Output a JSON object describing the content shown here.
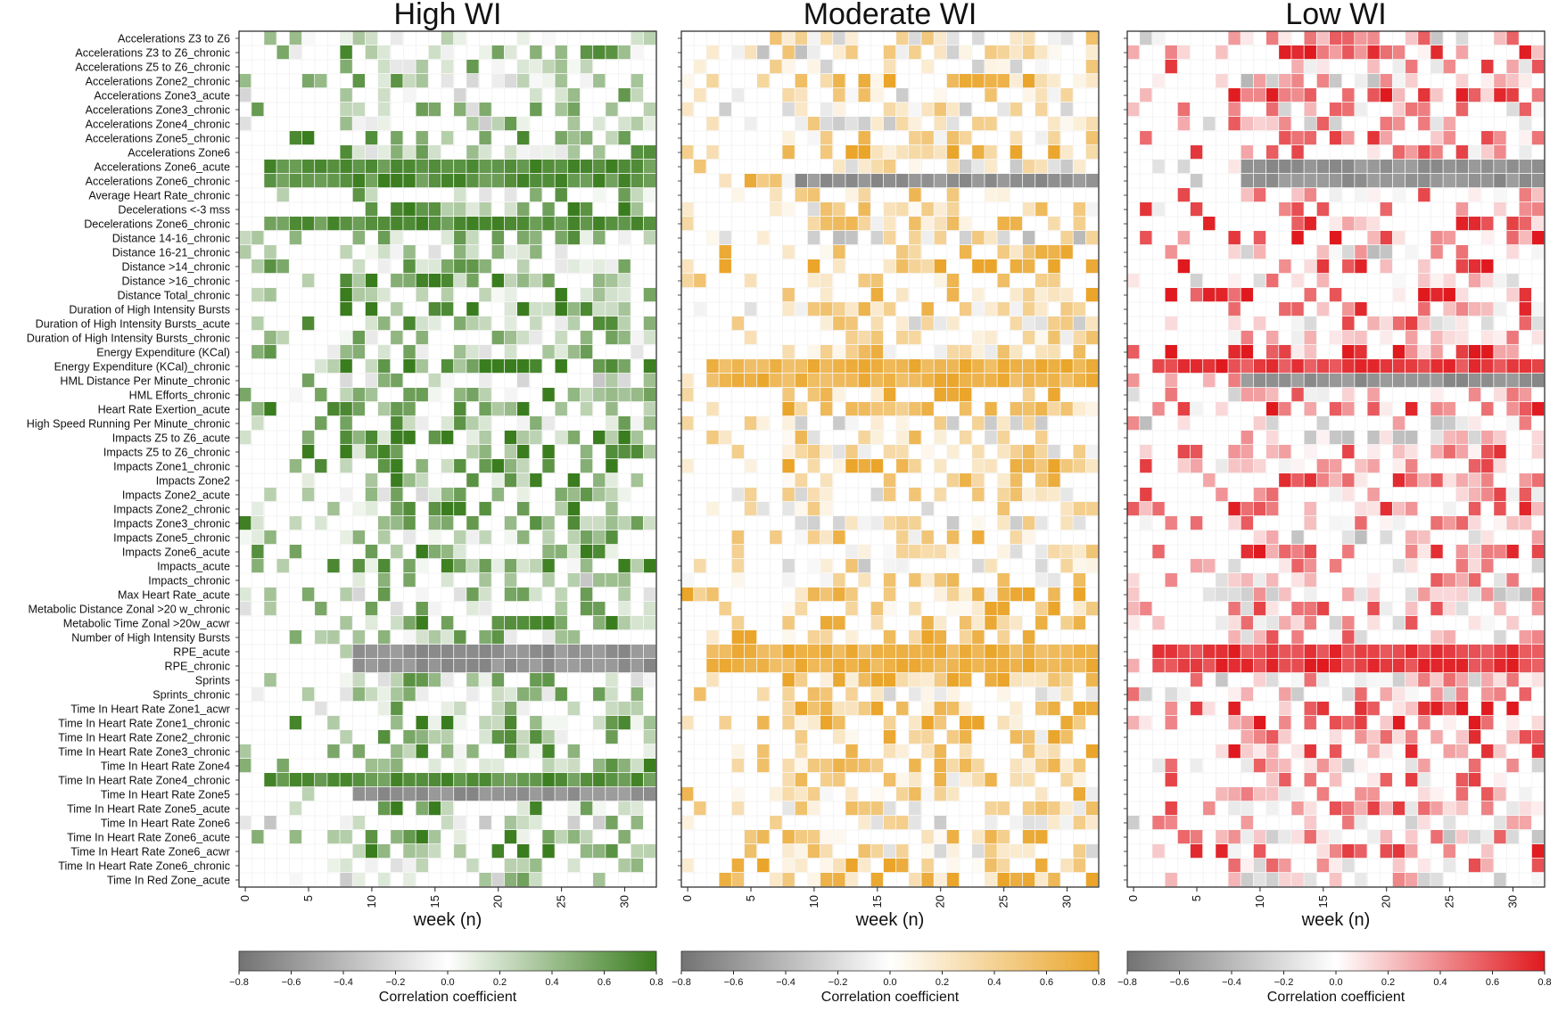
{
  "chart_data": {
    "type": "heatmap",
    "shared": {
      "xlabel": "week (n)",
      "x_ticks": [
        "0",
        "5",
        "10",
        "15",
        "20",
        "25",
        "30"
      ],
      "weeks": [
        0,
        1,
        2,
        3,
        4,
        5,
        6,
        7,
        8,
        9,
        10,
        11,
        12,
        13,
        14,
        15,
        16,
        17,
        18,
        19,
        20,
        21,
        22,
        23,
        24,
        25,
        26,
        27,
        28,
        29,
        30,
        31,
        32
      ],
      "rows": [
        "Accelerations Z3 to Z6",
        "Accelerations Z3 to Z6_chronic",
        "Accelerations Z5 to Z6_chronic",
        "Accelerations Zone2_chronic",
        "Accelerations Zone3_acute",
        "Accelerations Zone3_chronic",
        "Accelerations Zone4_chronic",
        "Accelerations Zone5_chronic",
        "Accelerations Zone6",
        "Accelerations Zone6_acute",
        "Accelerations Zone6_chronic",
        "Average Heart Rate_chronic",
        "Decelerations <-3 mss",
        "Decelerations Zone6_chronic",
        "Distance 14-16_chronic",
        "Distance 16-21_chronic",
        "Distance >14_chronic",
        "Distance >16_chronic",
        "Distance Total_chronic",
        "Duration of High Intensity Bursts",
        "Duration of High Intensity Bursts_acute",
        "Duration of High Intensity Bursts_chronic",
        "Energy Expenditure (KCal)",
        "Energy Expenditure (KCal)_chronic",
        "HML Distance Per Minute_chronic",
        "HML Efforts_chronic",
        "Heart Rate Exertion_acute",
        "High Speed Running Per Minute_chronic",
        "Impacts Z5 to Z6_acute",
        "Impacts Z5 to Z6_chronic",
        "Impacts Zone1_chronic",
        "Impacts Zone2",
        "Impacts Zone2_acute",
        "Impacts Zone2_chronic",
        "Impacts Zone3_chronic",
        "Impacts Zone5_chronic",
        "Impacts Zone6_acute",
        "Impacts_acute",
        "Impacts_chronic",
        "Max Heart Rate_acute",
        "Metabolic Distance Zonal >20 w_chronic",
        "Metabolic Time Zonal >20w_acwr",
        "Number of High Intensity Bursts",
        "RPE_acute",
        "RPE_chronic",
        "Sprints",
        "Sprints_chronic",
        "Time In Heart Rate Zone1_acwr",
        "Time In Heart Rate Zone1_chronic",
        "Time In Heart Rate Zone2_chronic",
        "Time In Heart Rate Zone3_chronic",
        "Time In Heart Rate Zone4",
        "Time In Heart Rate Zone4_chronic",
        "Time In Heart Rate Zone5",
        "Time In Heart Rate Zone5_acute",
        "Time In Heart Rate Zone6",
        "Time In Heart Rate Zone6_acute",
        "Time In Heart Rate Zone6_acwr",
        "Time In Heart Rate Zone6_chronic",
        "Time In Red Zone_acute"
      ],
      "colorbar_label": "Correlation coefficient",
      "colorbar_ticks": [
        "−0.8",
        "−0.6",
        "−0.4",
        "−0.2",
        "0.0",
        "0.2",
        "0.4",
        "0.6",
        "0.8"
      ],
      "colorbar_range": [
        -0.8,
        0.8
      ],
      "negative_color": "#737373"
    },
    "panels": [
      {
        "title": "High WI",
        "color_max": "#3a7d1e",
        "seed": 11,
        "strong_pos_rows": [
          "Accelerations Zone6_acute",
          "Accelerations Zone6_chronic",
          "Decelerations Zone6_chronic",
          "Time In Heart Rate Zone4_chronic"
        ],
        "strong_neg_rows": [
          "RPE_acute",
          "RPE_chronic",
          "Time In Heart Rate Zone5"
        ],
        "base_mean": 0.25
      },
      {
        "title": "Moderate WI",
        "color_max": "#eaa52a",
        "seed": 23,
        "strong_pos_rows": [
          "HML Distance Per Minute_chronic",
          "Energy Expenditure (KCal)_chronic",
          "RPE_acute",
          "RPE_chronic"
        ],
        "strong_neg_rows": [
          "Accelerations Zone6_chronic"
        ],
        "base_mean": 0.2
      },
      {
        "title": "Low WI",
        "color_max": "#e0191e",
        "seed": 37,
        "strong_pos_rows": [
          "Energy Expenditure (KCal)_chronic",
          "RPE_chronic",
          "RPE_acute"
        ],
        "strong_neg_rows": [
          "Accelerations Zone6_acute",
          "Accelerations Zone6_chronic",
          "HML Distance Per Minute_chronic"
        ],
        "base_mean": 0.15
      }
    ]
  }
}
